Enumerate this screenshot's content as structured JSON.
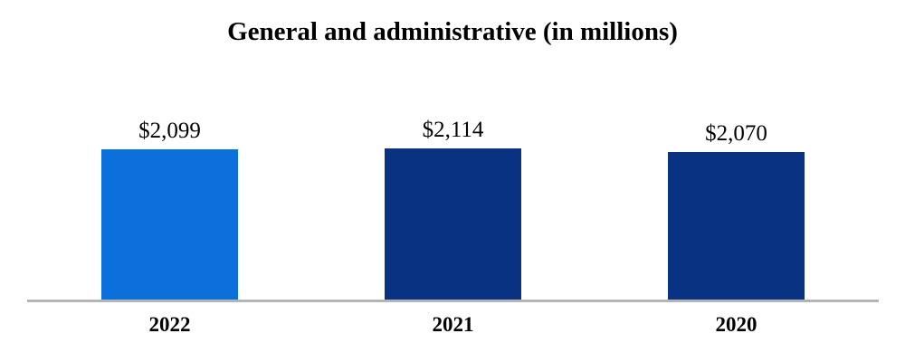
{
  "chart_data": {
    "type": "bar",
    "title": "General and administrative (in millions)",
    "categories": [
      "2022",
      "2021",
      "2020"
    ],
    "values": [
      2099,
      2114,
      2070
    ],
    "value_labels": [
      "$2,099",
      "$2,114",
      "$2,070"
    ],
    "series": [
      {
        "name": "General and administrative",
        "values": [
          2099,
          2114,
          2070
        ]
      }
    ],
    "bar_colors": [
      "#0B70DC",
      "#0A3283",
      "#0A3283"
    ],
    "axis_line_color": "#A6A6A6",
    "text_color": "#000000",
    "background_color": "#FFFFFF",
    "legend": "none",
    "gridlines": false,
    "y_axis_visible": false,
    "x_axis_visible": true,
    "y_starts_at_zero": true
  }
}
